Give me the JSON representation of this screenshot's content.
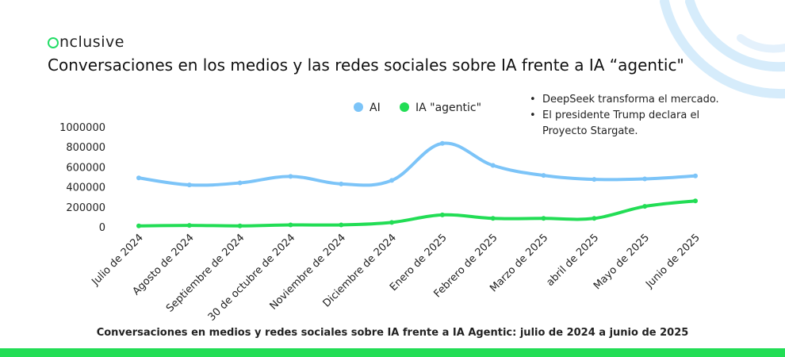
{
  "brand": {
    "name": "nclusive",
    "accent": "#22dd66"
  },
  "page_title": "Conversaciones en los medios y las redes sociales sobre IA frente a IA “agentic\"",
  "notes": [
    "DeepSeek transforma el mercado.",
    "El presidente Trump declara el",
    "Proyecto Stargate."
  ],
  "caption": "Conversaciones en medios y redes sociales sobre IA frente a IA Agentic: julio de 2024 a junio de 2025",
  "chart_data": {
    "type": "line",
    "categories": [
      "Julio de 2024",
      "Agosto de 2024",
      "Septiembre de 2024",
      "30 de octubre de 2024",
      "Noviembre de 2024",
      "Diciembre de 2024",
      "Enero de 2025",
      "Febrero de 2025",
      "Marzo de 2025",
      "abril de 2025",
      "Mayo de 2025",
      "Junio de 2025"
    ],
    "series": [
      {
        "name": "AI",
        "color": "#7cc4f8",
        "values": [
          490000,
          420000,
          440000,
          505000,
          430000,
          465000,
          835000,
          615000,
          515000,
          475000,
          480000,
          510000
        ]
      },
      {
        "name": "IA \"agentic\"",
        "color": "#22dd55",
        "values": [
          10000,
          15000,
          10000,
          20000,
          20000,
          45000,
          120000,
          85000,
          85000,
          85000,
          205000,
          260000
        ]
      }
    ],
    "yticks": [
      "0",
      "200000",
      "400000",
      "600000",
      "800000",
      "1000000"
    ],
    "ylim": [
      0,
      1000000
    ],
    "legend": "top-center",
    "grid": false
  }
}
